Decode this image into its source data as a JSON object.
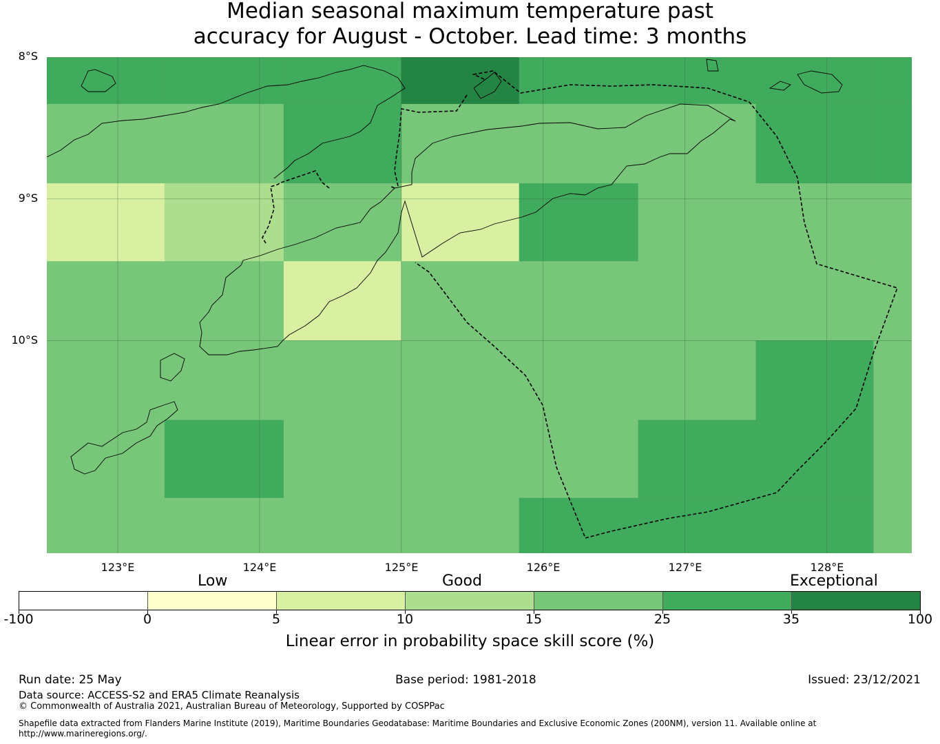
{
  "title": {
    "line1": "Median seasonal maximum temperature past",
    "line2": "accuracy for August - October. Lead time: 3 months"
  },
  "map": {
    "lat_labels": [
      "8°S",
      "9°S",
      "10°S"
    ],
    "lon_labels": [
      "123°E",
      "124°E",
      "125°E",
      "126°E",
      "127°E",
      "128°E"
    ],
    "lon_range": [
      122.5,
      128.6
    ],
    "lat_range": [
      -11.5,
      -8.0
    ],
    "boundary_style": "dashed",
    "gridlines": true
  },
  "chart_data": {
    "type": "heatmap",
    "x_edges": [
      122.5,
      123.33,
      124.17,
      125.0,
      125.83,
      126.67,
      127.5,
      128.33,
      128.6
    ],
    "y_edges": [
      -8.0,
      -8.33,
      -8.89,
      -9.44,
      -10.0,
      -10.56,
      -11.11,
      -11.5
    ],
    "categories_by_row": [
      [
        "25-35",
        "25-35",
        "25-35",
        "35-100",
        "25-35",
        "25-35",
        "25-35",
        "25-35"
      ],
      [
        "15-25",
        "15-25",
        "25-35",
        "15-25",
        "15-25",
        "15-25",
        "25-35",
        "25-35"
      ],
      [
        "5-10",
        "10-15",
        "15-25",
        "5-10",
        "25-35",
        "15-25",
        "15-25",
        "15-25"
      ],
      [
        "15-25",
        "15-25",
        "5-10",
        "15-25",
        "15-25",
        "15-25",
        "15-25",
        "15-25"
      ],
      [
        "15-25",
        "15-25",
        "15-25",
        "15-25",
        "15-25",
        "15-25",
        "25-35",
        "15-25"
      ],
      [
        "15-25",
        "25-35",
        "15-25",
        "15-25",
        "15-25",
        "25-35",
        "25-35",
        "15-25"
      ],
      [
        "15-25",
        "15-25",
        "15-25",
        "15-25",
        "25-35",
        "25-35",
        "25-35",
        "15-25"
      ]
    ]
  },
  "legend": {
    "category_labels": [
      "Low",
      "Good",
      "Exceptional"
    ],
    "ticks": [
      "-100",
      "0",
      "5",
      "10",
      "15",
      "25",
      "35",
      "100"
    ],
    "colors": [
      "#ffffff",
      "#ffffcc",
      "#d9f0a3",
      "#addd8e",
      "#78c679",
      "#41ab5d",
      "#238443"
    ],
    "label": "Linear error in probability space skill score (%)"
  },
  "footer": {
    "run_date": "Run date: 25 May",
    "base_period": "Base period: 1981-2018",
    "issued": "Issued: 23/12/2021",
    "data_source": "Data source: ACCESS-S2 and ERA5 Climate Reanalysis",
    "copyright": "© Commonwealth of Australia 2021, Australian Bureau of Meteorology, Supported by COSPPac",
    "shapefile": "Shapefile data extracted from Flanders Marine Institute (2019), Maritime Boundaries Geodatabase: Maritime Boundaries and Exclusive Economic Zones (200NM), version 11. Available online at",
    "url": "http://www.marineregions.org/."
  }
}
